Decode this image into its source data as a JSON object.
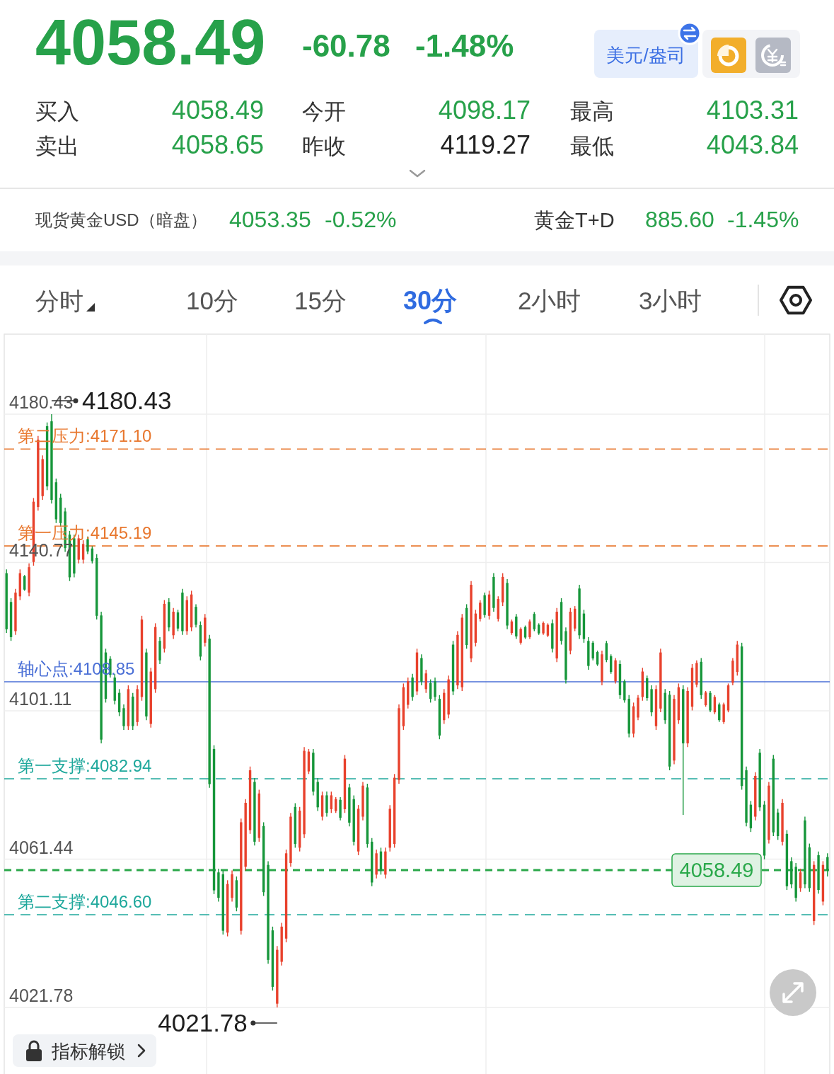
{
  "chart_data": [
    {
      "type": "other",
      "annotations": [
        "4058.49",
        "-60.78",
        "-1.48%",
        "美元/盎司",
        "买入",
        "4058.49",
        "卖出",
        "4058.65",
        "今开",
        "4098.17",
        "昨收",
        "4119.27",
        "最高",
        "4103.31",
        "最低",
        "4043.84",
        "现货黄金USD（暗盘）",
        "4053.35",
        "-0.52%",
        "黄金T+D",
        "885.60",
        "-1.45%",
        "分时",
        "10分",
        "15分",
        "30分",
        "2小时",
        "3小时"
      ]
    },
    {
      "type": "candlestick",
      "categories": [
        null,
        null,
        null,
        null,
        null,
        null,
        null,
        null,
        null,
        null,
        null,
        null,
        null,
        null,
        null,
        null,
        null,
        null,
        null,
        null,
        null,
        null,
        null,
        null,
        null,
        null,
        null,
        null,
        null,
        null,
        null,
        null,
        null,
        null,
        null,
        null,
        null,
        null,
        null,
        null,
        null,
        null,
        null,
        null,
        null,
        null,
        null,
        null,
        null,
        null,
        null,
        null,
        null,
        null,
        null,
        null,
        null,
        null,
        null,
        null,
        null,
        null,
        null,
        null,
        null,
        null,
        null,
        null,
        null,
        null,
        null,
        null,
        null,
        null,
        null,
        null,
        null,
        null,
        null,
        null,
        null,
        null,
        null,
        null,
        null,
        null,
        null,
        null,
        null,
        null,
        null,
        null,
        null,
        null,
        null,
        null,
        null,
        null,
        null,
        null,
        null,
        null,
        null,
        null,
        null,
        null,
        null,
        null,
        null,
        null,
        null,
        null,
        null,
        null,
        null,
        null,
        null,
        null,
        null,
        null,
        null,
        null,
        null,
        null,
        null,
        null,
        null,
        null,
        null,
        null,
        null,
        null,
        null,
        null,
        null,
        null,
        null,
        null,
        null,
        null,
        null,
        null,
        null,
        null,
        null,
        null,
        null,
        null,
        null,
        null,
        null,
        null,
        null,
        null,
        null,
        null,
        null,
        null,
        null,
        null,
        null,
        null,
        null,
        null,
        null,
        null,
        null,
        null,
        null,
        null,
        null,
        null,
        null,
        null,
        null,
        null,
        null,
        null,
        null,
        null,
        null,
        null,
        null
      ],
      "ohlc": [
        [
          4137.9,
          4138.9,
          4121.9,
          4122.9
        ],
        [
          4130.2,
          4131.2,
          4119.8,
          4120.8
        ],
        [
          4122.4,
          4133.7,
          4121.4,
          4132.7
        ],
        [
          4131.7,
          4138.9,
          4130.7,
          4137.9
        ],
        [
          4137.1,
          4137.4,
          4133.2,
          4133.5
        ],
        [
          4132.7,
          4140.5,
          4131.7,
          4139.5
        ],
        [
          4140.9,
          4158.0,
          4139.9,
          4157.0
        ],
        [
          4155.6,
          4174.6,
          4154.6,
          4173.6
        ],
        [
          4158.5,
          4169.4,
          4157.5,
          4168.4
        ],
        [
          4177.2,
          4178.2,
          4160.1,
          4161.1
        ],
        [
          4178.5,
          4180.43,
          4156.5,
          4157.5
        ],
        [
          4162.2,
          4163.2,
          4151.3,
          4152.3
        ],
        [
          4158.1,
          4159.1,
          4150.3,
          4151.3
        ],
        [
          4154.4,
          4155.4,
          4143.6,
          4144.6
        ],
        [
          4148.2,
          4149.2,
          4135.8,
          4136.8
        ],
        [
          4147.2,
          4148.2,
          4136.8,
          4137.8
        ],
        [
          4141.5,
          4148.2,
          4140.5,
          4147.2
        ],
        [
          4141.5,
          4146.7,
          4140.5,
          4145.7
        ],
        [
          4147.0,
          4147.7,
          4143.0,
          4143.7
        ],
        [
          4144.5,
          4145.1,
          4140.5,
          4141.1
        ],
        [
          4142.0,
          4143.0,
          4125.5,
          4126.5
        ],
        [
          4126.6,
          4127.6,
          4092.4,
          4093.4
        ],
        [
          4116.7,
          4117.7,
          4103.3,
          4104.3
        ],
        [
          4115.0,
          4115.7,
          4110.0,
          4110.7
        ],
        [
          4110.0,
          4111.0,
          4102.8,
          4103.8
        ],
        [
          4105.9,
          4106.9,
          4099.7,
          4100.7
        ],
        [
          4101.8,
          4102.8,
          4096.0,
          4097.0
        ],
        [
          4097.0,
          4107.9,
          4096.0,
          4106.9
        ],
        [
          4104.9,
          4105.9,
          4096.0,
          4097.0
        ],
        [
          4098.1,
          4107.9,
          4097.1,
          4106.9
        ],
        [
          4104.8,
          4126.5,
          4103.8,
          4125.5
        ],
        [
          4116.7,
          4117.7,
          4098.6,
          4099.6
        ],
        [
          4097.6,
          4112.6,
          4096.6,
          4111.6
        ],
        [
          4106.9,
          4124.5,
          4105.9,
          4123.5
        ],
        [
          4119.8,
          4120.8,
          4113.6,
          4114.6
        ],
        [
          4117.7,
          4130.7,
          4116.7,
          4129.7
        ],
        [
          4130.2,
          4131.2,
          4122.4,
          4123.4
        ],
        [
          4121.3,
          4128.6,
          4120.3,
          4127.6
        ],
        [
          4127.4,
          4128.1,
          4122.4,
          4123.1
        ],
        [
          4132.7,
          4133.7,
          4121.4,
          4122.4
        ],
        [
          4122.4,
          4131.7,
          4121.4,
          4130.7
        ],
        [
          4123.4,
          4133.2,
          4122.4,
          4132.2
        ],
        [
          4128.9,
          4129.6,
          4123.4,
          4124.1
        ],
        [
          4124.0,
          4125.0,
          4114.6,
          4115.6
        ],
        [
          4119.3,
          4127.0,
          4118.3,
          4126.0
        ],
        [
          4120.4,
          4121.4,
          4080.5,
          4081.5
        ],
        [
          4090.9,
          4091.9,
          4052.1,
          4053.1
        ],
        [
          4057.9,
          4058.9,
          4050.1,
          4051.1
        ],
        [
          4057.4,
          4058.4,
          4041.3,
          4042.3
        ],
        [
          4041.8,
          4055.8,
          4040.8,
          4054.8
        ],
        [
          4051.1,
          4058.4,
          4050.1,
          4057.4
        ],
        [
          4055.8,
          4056.8,
          4047.5,
          4048.5
        ],
        [
          4042.3,
          4072.3,
          4041.3,
          4071.3
        ],
        [
          4059.4,
          4077.5,
          4058.4,
          4076.5
        ],
        [
          4069.2,
          4086.2,
          4068.2,
          4085.2
        ],
        [
          4082.1,
          4083.1,
          4065.1,
          4066.1
        ],
        [
          4067.1,
          4080.0,
          4066.1,
          4079.0
        ],
        [
          4070.3,
          4071.3,
          4051.6,
          4052.6
        ],
        [
          4059.9,
          4060.9,
          4033.5,
          4034.5
        ],
        [
          4042.4,
          4043.4,
          4026.3,
          4027.3
        ],
        [
          4022.8,
          4038.2,
          4021.78,
          4037.2
        ],
        [
          4034.0,
          4044.4,
          4033.0,
          4043.4
        ],
        [
          4040.2,
          4064.0,
          4039.2,
          4063.0
        ],
        [
          4060.4,
          4073.8,
          4059.4,
          4072.8
        ],
        [
          4075.4,
          4076.4,
          4064.5,
          4065.5
        ],
        [
          4064.5,
          4075.4,
          4063.5,
          4074.4
        ],
        [
          4068.1,
          4091.4,
          4067.1,
          4090.4
        ],
        [
          4084.9,
          4090.9,
          4084.2,
          4090.2
        ],
        [
          4089.9,
          4090.9,
          4078.5,
          4079.5
        ],
        [
          4082.1,
          4083.1,
          4074.3,
          4075.3
        ],
        [
          4072.8,
          4079.5,
          4071.8,
          4078.5
        ],
        [
          4078.5,
          4079.5,
          4072.8,
          4073.8
        ],
        [
          4074.8,
          4079.5,
          4073.8,
          4078.5
        ],
        [
          4074.3,
          4078.0,
          4073.8,
          4077.5
        ],
        [
          4077.3,
          4078.0,
          4071.8,
          4072.5
        ],
        [
          4074.8,
          4089.3,
          4073.8,
          4088.3
        ],
        [
          4080.6,
          4081.6,
          4070.2,
          4071.2
        ],
        [
          4077.5,
          4078.5,
          4065.1,
          4066.1
        ],
        [
          4063.5,
          4075.9,
          4062.5,
          4074.9
        ],
        [
          4072.8,
          4082.1,
          4071.8,
          4081.1
        ],
        [
          4080.6,
          4081.6,
          4064.5,
          4065.5
        ],
        [
          4066.1,
          4067.1,
          4054.2,
          4055.2
        ],
        [
          4057.3,
          4064.0,
          4056.3,
          4063.0
        ],
        [
          4063.5,
          4064.5,
          4057.3,
          4058.3
        ],
        [
          4057.3,
          4064.5,
          4056.3,
          4063.5
        ],
        [
          4064.5,
          4075.9,
          4063.5,
          4074.9
        ],
        [
          4065.5,
          4084.2,
          4064.5,
          4083.2
        ],
        [
          4082.6,
          4102.8,
          4081.6,
          4101.8
        ],
        [
          4097.0,
          4108.4,
          4096.0,
          4107.4
        ],
        [
          4102.7,
          4110.0,
          4101.7,
          4109.0
        ],
        [
          4110.0,
          4111.0,
          4103.8,
          4104.8
        ],
        [
          4106.3,
          4117.7,
          4105.3,
          4116.7
        ],
        [
          4115.2,
          4116.2,
          4107.9,
          4108.9
        ],
        [
          4106.9,
          4112.1,
          4105.9,
          4111.1
        ],
        [
          4108.5,
          4109.5,
          4103.3,
          4104.3
        ],
        [
          4109.0,
          4110.0,
          4103.8,
          4104.8
        ],
        [
          4104.3,
          4105.3,
          4093.5,
          4094.5
        ],
        [
          4098.6,
          4106.9,
          4097.6,
          4105.9
        ],
        [
          4100.1,
          4110.5,
          4099.1,
          4109.5
        ],
        [
          4118.8,
          4119.8,
          4105.3,
          4106.3
        ],
        [
          4107.9,
          4122.4,
          4106.9,
          4121.4
        ],
        [
          4107.4,
          4127.0,
          4106.4,
          4126.0
        ],
        [
          4128.6,
          4129.6,
          4117.7,
          4118.7
        ],
        [
          4115.1,
          4135.8,
          4114.1,
          4134.8
        ],
        [
          4119.3,
          4128.1,
          4118.3,
          4127.1
        ],
        [
          4125.7,
          4130.7,
          4125.0,
          4130.0
        ],
        [
          4132.0,
          4132.7,
          4126.0,
          4126.7
        ],
        [
          4126.5,
          4133.2,
          4125.5,
          4132.2
        ],
        [
          4136.9,
          4137.9,
          4127.6,
          4128.6
        ],
        [
          4125.7,
          4131.7,
          4125.0,
          4131.0
        ],
        [
          4130.1,
          4137.9,
          4129.1,
          4136.9
        ],
        [
          4135.3,
          4136.3,
          4122.9,
          4123.9
        ],
        [
          4121.9,
          4125.5,
          4121.4,
          4125.0
        ],
        [
          4126.3,
          4127.0,
          4120.3,
          4121.0
        ],
        [
          4119.3,
          4123.4,
          4118.8,
          4123.0
        ],
        [
          4123.5,
          4123.9,
          4120.3,
          4120.7
        ],
        [
          4120.8,
          4125.5,
          4120.3,
          4125.0
        ],
        [
          4127.0,
          4127.5,
          4122.4,
          4122.9
        ],
        [
          4124.1,
          4124.5,
          4121.4,
          4121.8
        ],
        [
          4121.8,
          4125.0,
          4121.4,
          4124.6
        ],
        [
          4121.2,
          4124.5,
          4120.8,
          4124.1
        ],
        [
          4124.5,
          4125.5,
          4116.7,
          4117.7
        ],
        [
          4115.1,
          4128.6,
          4114.1,
          4127.6
        ],
        [
          4130.2,
          4131.2,
          4118.8,
          4119.8
        ],
        [
          4122.4,
          4123.4,
          4108.4,
          4109.4
        ],
        [
          4117.2,
          4128.6,
          4116.2,
          4127.6
        ],
        [
          4123.1,
          4129.1,
          4122.4,
          4128.4
        ],
        [
          4133.8,
          4134.8,
          4120.3,
          4121.3
        ],
        [
          4127.1,
          4128.1,
          4119.3,
          4120.3
        ],
        [
          4119.8,
          4120.8,
          4112.1,
          4113.1
        ],
        [
          4119.3,
          4119.8,
          4114.6,
          4115.1
        ],
        [
          4116.8,
          4117.2,
          4113.1,
          4113.5
        ],
        [
          4108.9,
          4117.2,
          4107.9,
          4116.2
        ],
        [
          4119.2,
          4119.8,
          4114.1,
          4114.7
        ],
        [
          4115.7,
          4116.2,
          4111.0,
          4111.5
        ],
        [
          4109.0,
          4115.2,
          4108.4,
          4114.6
        ],
        [
          4113.6,
          4114.6,
          4104.3,
          4105.3
        ],
        [
          4109.0,
          4109.5,
          4103.3,
          4103.9
        ],
        [
          4104.3,
          4105.3,
          4094.0,
          4095.0
        ],
        [
          4095.0,
          4103.3,
          4094.0,
          4102.3
        ],
        [
          4099.3,
          4105.3,
          4098.6,
          4104.6
        ],
        [
          4104.8,
          4112.6,
          4103.8,
          4111.6
        ],
        [
          4109.8,
          4110.5,
          4103.8,
          4104.5
        ],
        [
          4106.9,
          4107.9,
          4099.7,
          4100.7
        ],
        [
          4097.0,
          4107.9,
          4096.0,
          4106.9
        ],
        [
          4101.7,
          4117.7,
          4100.7,
          4116.7
        ],
        [
          4105.9,
          4106.9,
          4097.6,
          4098.6
        ],
        [
          4105.4,
          4106.4,
          4085.2,
          4086.2
        ],
        [
          4087.8,
          4105.3,
          4086.8,
          4104.3
        ],
        [
          4098.6,
          4108.4,
          4097.6,
          4107.4
        ],
        [
          4106.9,
          4107.9,
          4073.3,
          4092.4
        ],
        [
          4092.4,
          4107.4,
          4091.4,
          4106.4
        ],
        [
          4102.2,
          4113.6,
          4101.2,
          4112.6
        ],
        [
          4108.1,
          4114.6,
          4107.4,
          4113.9
        ],
        [
          4114.2,
          4115.2,
          4104.3,
          4105.3
        ],
        [
          4102.6,
          4106.4,
          4102.2,
          4106.0
        ],
        [
          4105.9,
          4106.4,
          4100.7,
          4101.2
        ],
        [
          4100.7,
          4105.3,
          4100.2,
          4104.8
        ],
        [
          4102.8,
          4103.3,
          4098.1,
          4098.6
        ],
        [
          4098.1,
          4103.3,
          4097.6,
          4102.8
        ],
        [
          4101.2,
          4108.4,
          4100.7,
          4107.9
        ],
        [
          4108.6,
          4115.2,
          4107.9,
          4114.5
        ],
        [
          4111.5,
          4119.8,
          4110.5,
          4118.8
        ],
        [
          4118.3,
          4119.3,
          4080.0,
          4081.0
        ],
        [
          4085.2,
          4086.2,
          4070.2,
          4071.2
        ],
        [
          4076.0,
          4077.0,
          4068.7,
          4069.7
        ],
        [
          4072.8,
          4084.7,
          4071.8,
          4083.7
        ],
        [
          4089.9,
          4090.9,
          4074.3,
          4075.3
        ],
        [
          4076.0,
          4077.0,
          4061.4,
          4062.4
        ],
        [
          4066.6,
          4082.1,
          4065.6,
          4081.1
        ],
        [
          4088.3,
          4089.3,
          4067.6,
          4068.6
        ],
        [
          4073.9,
          4074.9,
          4066.6,
          4067.6
        ],
        [
          4066.1,
          4077.5,
          4065.1,
          4076.5
        ],
        [
          4068.2,
          4069.2,
          4053.2,
          4054.2
        ],
        [
          4060.9,
          4061.9,
          4053.7,
          4054.7
        ],
        [
          4059.4,
          4060.4,
          4050.1,
          4051.1
        ],
        [
          4053.7,
          4058.9,
          4052.7,
          4057.9
        ],
        [
          4071.8,
          4072.8,
          4053.7,
          4054.7
        ],
        [
          4064.6,
          4065.6,
          4052.7,
          4053.7
        ],
        [
          4044.9,
          4060.9,
          4043.84,
          4059.9
        ],
        [
          4062.5,
          4063.5,
          4052.2,
          4053.2
        ],
        [
          4050.1,
          4060.9,
          4049.1,
          4059.9
        ],
        [
          4062.0,
          4063.0,
          4056.8,
          4058.49
        ]
      ],
      "ylim": [
        4004.0,
        4201.8
      ],
      "yticks": [
        4180.43,
        4140.77,
        4101.11,
        4061.44,
        4021.78
      ],
      "tick_labels": "y",
      "grid": true,
      "ref_lines": [
        {
          "axis": "y",
          "value": 4171.1,
          "label": "第二压力:4171.10",
          "color": "#e8772e",
          "line_style": "dashed"
        },
        {
          "axis": "y",
          "value": 4145.19,
          "label": "第一压力:4145.19",
          "color": "#e8772e",
          "line_style": "dashed"
        },
        {
          "axis": "y",
          "value": 4108.85,
          "label": "轴心点:4108.85",
          "color": "#4a6fd6",
          "line_style": "solid"
        },
        {
          "axis": "y",
          "value": 4082.94,
          "label": "第一支撑:4082.94",
          "color": "#1fa89c",
          "line_style": "dashed"
        },
        {
          "axis": "y",
          "value": 4046.6,
          "label": "第二支撑:4046.60",
          "color": "#1fa89c",
          "line_style": "dashed"
        },
        {
          "axis": "y",
          "value": 4058.49,
          "label": "4058.49",
          "color": "#2aa84a",
          "line_style": "dashed"
        }
      ],
      "annotations": [
        "4180.43",
        "4021.78",
        "指标解锁"
      ]
    }
  ]
}
